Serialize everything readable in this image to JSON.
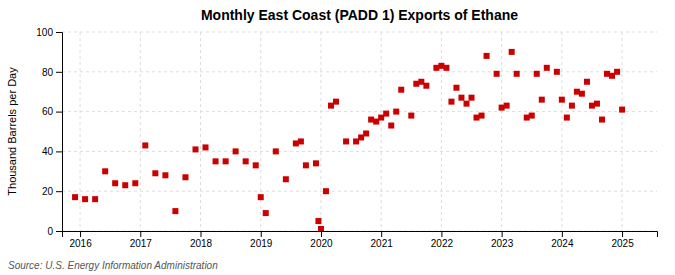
{
  "chart_data": {
    "type": "scatter",
    "title": "Monthly East Coast (PADD 1) Exports of Ethane",
    "ylabel": "Thousand Barrels per Day",
    "annotations": [
      "Source: U.S. Energy Information Administration"
    ],
    "xlim": [
      2015.7,
      2025.58
    ],
    "ylim": [
      0,
      100
    ],
    "xticks": [
      2016,
      2017,
      2018,
      2019,
      2020,
      2021,
      2022,
      2023,
      2024,
      2025
    ],
    "yticks": [
      0,
      20,
      40,
      60,
      80,
      100
    ],
    "color": "#cc0000",
    "marker": "square",
    "grid": true,
    "x": [
      2015.917,
      2016.083,
      2016.25,
      2016.417,
      2016.583,
      2016.75,
      2016.917,
      2017.083,
      2017.25,
      2017.417,
      2017.583,
      2017.75,
      2017.917,
      2018.083,
      2018.25,
      2018.417,
      2018.583,
      2018.75,
      2018.917,
      2019.0,
      2019.083,
      2019.25,
      2019.417,
      2019.583,
      2019.667,
      2019.75,
      2019.917,
      2019.958,
      2020.0,
      2020.083,
      2020.167,
      2020.25,
      2020.417,
      2020.583,
      2020.667,
      2020.75,
      2020.833,
      2020.917,
      2021.0,
      2021.083,
      2021.167,
      2021.25,
      2021.333,
      2021.5,
      2021.583,
      2021.667,
      2021.75,
      2021.917,
      2022.0,
      2022.083,
      2022.167,
      2022.25,
      2022.333,
      2022.417,
      2022.5,
      2022.583,
      2022.667,
      2022.75,
      2022.917,
      2023.0,
      2023.083,
      2023.167,
      2023.25,
      2023.417,
      2023.5,
      2023.583,
      2023.667,
      2023.75,
      2023.917,
      2024.0,
      2024.083,
      2024.167,
      2024.25,
      2024.333,
      2024.417,
      2024.5,
      2024.583,
      2024.667,
      2024.75,
      2024.833,
      2024.917,
      2025.0
    ],
    "values": [
      17,
      16,
      16,
      30,
      24,
      23,
      24,
      43,
      29,
      28,
      10,
      27,
      41,
      42,
      35,
      35,
      40,
      35,
      33,
      17,
      9,
      40,
      26,
      44,
      45,
      33,
      34,
      5,
      1,
      20,
      63,
      65,
      45,
      45,
      47,
      49,
      56,
      55,
      57,
      59,
      53,
      60,
      71,
      58,
      74,
      75,
      73,
      82,
      83,
      82,
      65,
      72,
      67,
      64,
      67,
      57,
      58,
      88,
      79,
      62,
      63,
      90,
      79,
      57,
      58,
      79,
      66,
      82,
      80,
      66,
      57,
      63,
      70,
      69,
      75,
      63,
      64,
      56,
      79,
      78,
      80,
      61
    ]
  }
}
